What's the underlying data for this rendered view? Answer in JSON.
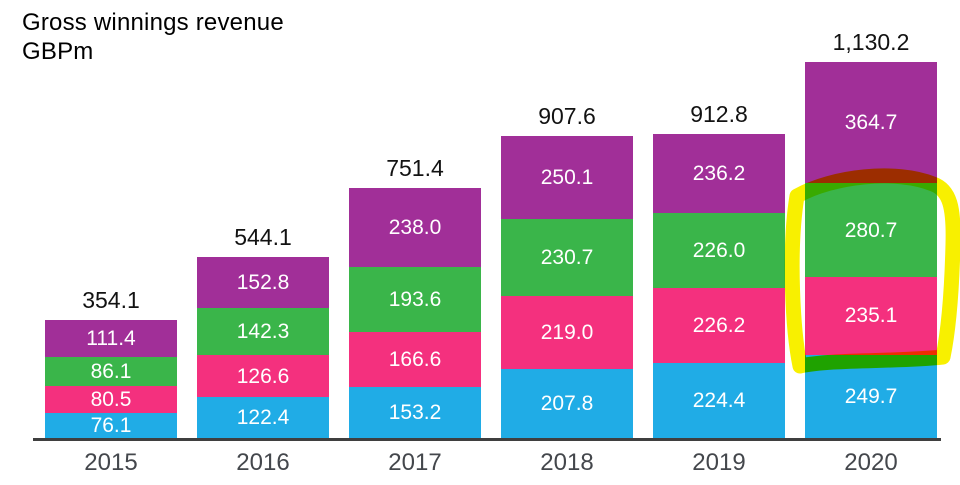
{
  "header": {
    "title_line1": "Gross winnings revenue",
    "title_line2": "GBPm"
  },
  "chart_data": {
    "type": "bar",
    "stacked": true,
    "title": "Gross winnings revenue",
    "unit_label": "GBPm",
    "legend_position": "none",
    "grid": false,
    "categories": [
      "2015",
      "2016",
      "2017",
      "2018",
      "2019",
      "2020"
    ],
    "series": [
      {
        "name": "blue-bottom-segment",
        "color": "#20ace6",
        "values": [
          76.1,
          122.4,
          153.2,
          207.8,
          224.4,
          249.7
        ]
      },
      {
        "name": "pink-segment",
        "color": "#f4307e",
        "values": [
          80.5,
          126.6,
          166.6,
          219.0,
          226.2,
          235.1
        ]
      },
      {
        "name": "green-segment",
        "color": "#3ab54a",
        "values": [
          86.1,
          142.3,
          193.6,
          230.7,
          226.0,
          280.7
        ]
      },
      {
        "name": "purple-top-segment",
        "color": "#a12f98",
        "values": [
          111.4,
          152.8,
          238.0,
          250.1,
          236.2,
          364.7
        ]
      }
    ],
    "totals": [
      354.1,
      544.1,
      751.4,
      907.6,
      912.8,
      1130.2
    ],
    "totals_display": [
      "354.1",
      "544.1",
      "751.4",
      "907.6",
      "912.8",
      "1,130.2"
    ],
    "value_label_style": "white numbers centered inside each segment",
    "annotation": {
      "shape": "hand-drawn-highlighter-rectangle",
      "color": "#f8f000",
      "highlights": "2020 pink (235.1) and green (280.7) segments"
    }
  },
  "colors": {
    "background": "#ffffff",
    "axis": "#3f3f3f",
    "year_label": "#44474c",
    "total_label": "#121212",
    "segment_value_label": "#ffffff",
    "highlight_yellow": "#f8f000"
  }
}
